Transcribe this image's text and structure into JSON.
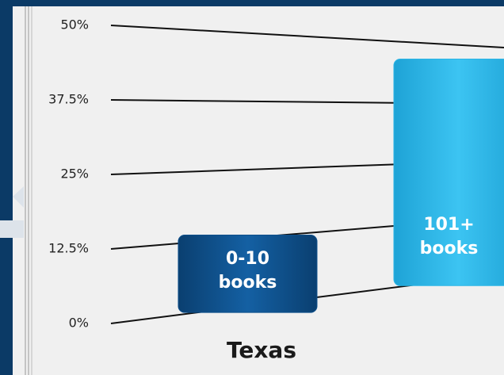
{
  "chart_data": {
    "type": "bar",
    "categories": [
      "0-10 books",
      "101+ books"
    ],
    "values": [
      13,
      47
    ],
    "colors": [
      "#0d4f8b",
      "#2bb5e6"
    ],
    "x_label": "Texas",
    "ylim": [
      0,
      50
    ],
    "yticks": [
      {
        "value": 0,
        "label": "0%"
      },
      {
        "value": 12.5,
        "label": "12.5%"
      },
      {
        "value": 25,
        "label": "25%"
      },
      {
        "value": 37.5,
        "label": "37.5%"
      },
      {
        "value": 50,
        "label": "50%"
      }
    ],
    "grid": true
  }
}
